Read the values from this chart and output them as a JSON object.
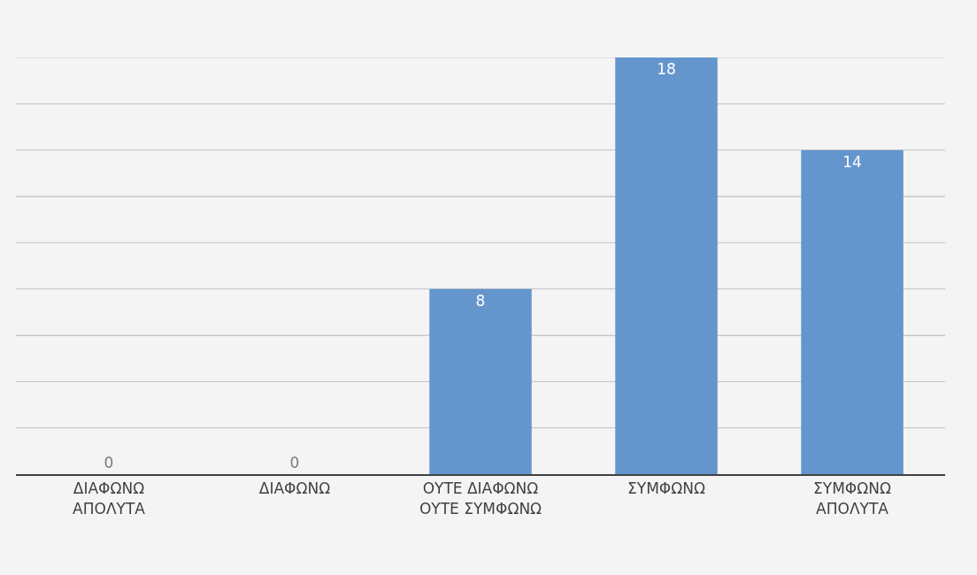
{
  "chart_data": {
    "type": "bar",
    "categories": [
      "ΔΙΑΦΩΝΩ ΑΠΟΛΥΤΑ",
      "ΔΙΑΦΩΝΩ",
      "ΟΥΤΕ ΔΙΑΦΩΝΩ ΟΥΤΕ ΣΥΜΦΩΝΩ",
      "ΣΥΜΦΩΝΩ",
      "ΣΥΜΦΩΝΩ ΑΠΟΛΥΤΑ"
    ],
    "values": [
      0,
      0,
      8,
      18,
      14
    ],
    "color": "#6495cd",
    "data_labels": true,
    "ylim": [
      0,
      18
    ],
    "yticks": [
      {
        "value": 0,
        "label": null
      },
      {
        "value": 2,
        "label": null
      },
      {
        "value": 4,
        "label": null
      },
      {
        "value": 6,
        "label": null
      },
      {
        "value": 8,
        "label": null
      },
      {
        "value": 10,
        "label": null
      },
      {
        "value": 12,
        "label": null
      },
      {
        "value": 14,
        "label": null
      },
      {
        "value": 16,
        "label": null
      },
      {
        "value": 18,
        "label": null
      }
    ],
    "grid": "y",
    "tick_labels": "x"
  }
}
